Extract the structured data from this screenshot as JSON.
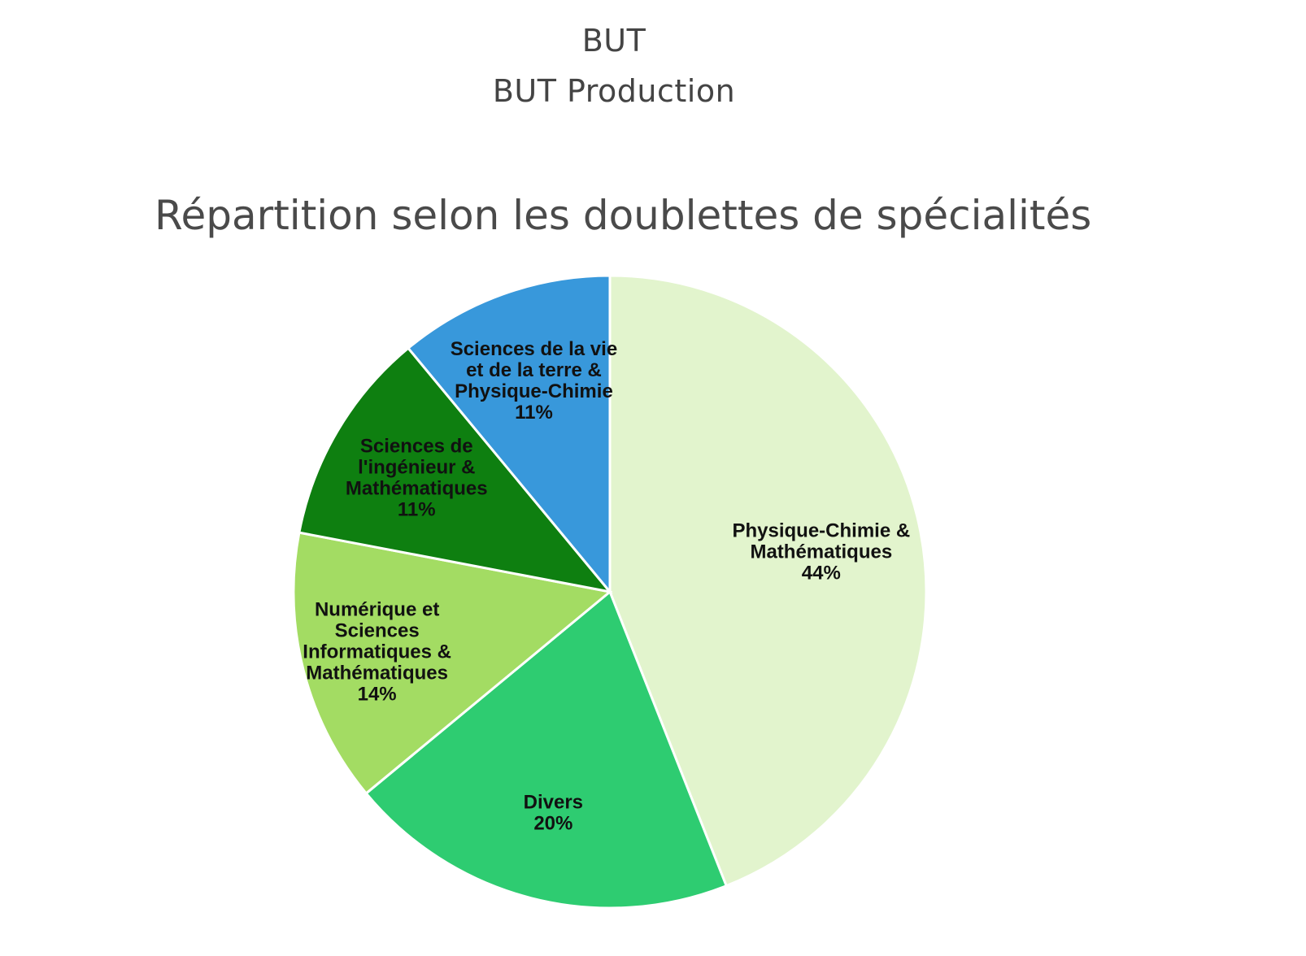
{
  "header": {
    "line1": "BUT",
    "line2": "BUT Production"
  },
  "chart_data": {
    "type": "pie",
    "title": "Répartition selon les doublettes de spécialités",
    "slices": [
      {
        "label": "Physique-Chimie & Mathématiques",
        "lines": [
          "Physique-Chimie &",
          "Mathématiques",
          "44%"
        ],
        "value": 44,
        "color": "#e2f4cd"
      },
      {
        "label": "Divers",
        "lines": [
          "Divers",
          "20%"
        ],
        "value": 20,
        "color": "#2ecc71"
      },
      {
        "label": "Numérique et Sciences Informatiques & Mathématiques",
        "lines": [
          "Numérique et",
          "Sciences",
          "Informatiques &",
          "Mathématiques",
          "14%"
        ],
        "value": 14,
        "color": "#a3dc63"
      },
      {
        "label": "Sciences de l'ingénieur & Mathématiques",
        "lines": [
          "Sciences de",
          "l'ingénieur &",
          "Mathématiques",
          "11%"
        ],
        "value": 11,
        "color": "#0e7f10"
      },
      {
        "label": "Sciences de la vie et de la terre & Physique-Chimie",
        "lines": [
          "Sciences de la vie",
          "et de la terre &",
          "Physique-Chimie",
          "11%"
        ],
        "value": 11,
        "color": "#3898db"
      }
    ],
    "start": "12 o'clock",
    "direction": "clockwise",
    "legend": "none"
  }
}
